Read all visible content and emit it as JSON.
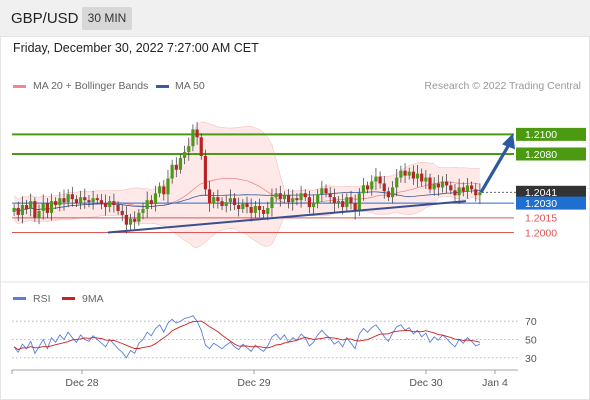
{
  "header": {
    "symbol": "GBP/USD",
    "timeframe": "30 MIN"
  },
  "datetime": "Friday, December 30, 2022 7:27:00 AM CET",
  "legend": {
    "bollinger_label": "MA 20 + Bollinger Bands",
    "ma50_label": "MA 50",
    "credit": "Research © 2022 Trading Central",
    "rsi_label": "RSI",
    "rsi_ma_label": "9MA"
  },
  "colors": {
    "bollinger": "#f08a8a",
    "ma50": "#3a5a9a",
    "resistance": "#4c9a12",
    "support": "#dd5555",
    "pivot": "#1f6fd1",
    "price_box": "#333333",
    "trendline": "#3a4f8f",
    "candle_up": "#4b9a1a",
    "candle_down": "#b52525",
    "rsi": "#5a7fdb",
    "rsi_ma": "#cc2222"
  },
  "chart_data": [
    {
      "type": "candlestick",
      "title": "GBP/USD",
      "x_ticks": [
        "Dec 28",
        "Dec 29",
        "Dec 30",
        "Jan 4"
      ],
      "ylim": [
        1.197,
        1.2135
      ],
      "price_levels": [
        {
          "value": 1.21,
          "label": "1.2100",
          "kind": "resistance"
        },
        {
          "value": 1.208,
          "label": "1.2080",
          "kind": "resistance"
        },
        {
          "value": 1.2041,
          "label": "1.2041",
          "kind": "last-price"
        },
        {
          "value": 1.203,
          "label": "1.2030",
          "kind": "pivot"
        },
        {
          "value": 1.2015,
          "label": "1.2015",
          "kind": "support"
        },
        {
          "value": 1.2,
          "label": "1.2000",
          "kind": "support"
        }
      ],
      "last_price": 1.2041,
      "trendline": {
        "from_price": 1.2,
        "to_price": 1.2032
      },
      "projection": {
        "from_price": 1.2041,
        "to_price": 1.21
      },
      "series": [
        {
          "name": "MA 20 + Bollinger Bands"
        },
        {
          "name": "MA 50"
        }
      ],
      "closes": [
        1.2025,
        1.2018,
        1.2028,
        1.2024,
        1.2032,
        1.2015,
        1.2022,
        1.203,
        1.202,
        1.2032,
        1.2028,
        1.2035,
        1.2031,
        1.2039,
        1.2034,
        1.203,
        1.2036,
        1.2033,
        1.2031,
        1.2035,
        1.2033,
        1.203,
        1.2026,
        1.2032,
        1.2028,
        1.2022,
        1.2018,
        1.2008,
        1.2014,
        1.2011,
        1.202,
        1.2024,
        1.2033,
        1.2029,
        1.204,
        1.2047,
        1.2039,
        1.2055,
        1.2069,
        1.2064,
        1.2076,
        1.2082,
        1.2088,
        1.2105,
        1.2097,
        1.2078,
        1.2044,
        1.203,
        1.2036,
        1.2032,
        1.2027,
        1.2031,
        1.2035,
        1.2028,
        1.2024,
        1.203,
        1.2026,
        1.202,
        1.2027,
        1.2023,
        1.2019,
        1.2025,
        1.2036,
        1.204,
        1.2034,
        1.2038,
        1.2031,
        1.2035,
        1.2033,
        1.204,
        1.2036,
        1.2026,
        1.203,
        1.2039,
        1.2045,
        1.204,
        1.2036,
        1.203,
        1.2032,
        1.2026,
        1.2036,
        1.203,
        1.2022,
        1.204,
        1.2048,
        1.2044,
        1.2052,
        1.2057,
        1.205,
        1.2042,
        1.2036,
        1.2046,
        1.2056,
        1.2063,
        1.2058,
        1.2062,
        1.2055,
        1.206,
        1.2052,
        1.2056,
        1.2044,
        1.205,
        1.2046,
        1.2052,
        1.2048,
        1.2043,
        1.2038,
        1.2046,
        1.2042,
        1.2048,
        1.2044,
        1.2038,
        1.2041
      ]
    },
    {
      "type": "line",
      "title": "RSI",
      "y_ticks": [
        70,
        50,
        30
      ],
      "ylim": [
        20,
        80
      ],
      "series": [
        {
          "name": "RSI",
          "values": [
            42,
            36,
            45,
            40,
            48,
            35,
            42,
            50,
            40,
            52,
            47,
            55,
            50,
            58,
            52,
            47,
            55,
            50,
            48,
            54,
            50,
            46,
            42,
            50,
            45,
            40,
            36,
            30,
            38,
            35,
            46,
            50,
            58,
            54,
            62,
            66,
            58,
            68,
            72,
            68,
            70,
            73,
            74,
            76,
            70,
            60,
            44,
            40,
            46,
            43,
            40,
            44,
            47,
            42,
            39,
            45,
            41,
            37,
            44,
            40,
            37,
            43,
            53,
            56,
            50,
            55,
            47,
            52,
            49,
            56,
            52,
            43,
            47,
            55,
            60,
            55,
            51,
            45,
            48,
            42,
            52,
            46,
            40,
            56,
            62,
            58,
            63,
            66,
            60,
            53,
            48,
            57,
            64,
            66,
            60,
            63,
            56,
            60,
            53,
            57,
            47,
            53,
            49,
            55,
            51,
            46,
            42,
            50,
            46,
            52,
            48,
            43,
            45
          ]
        },
        {
          "name": "9MA"
        }
      ]
    }
  ]
}
